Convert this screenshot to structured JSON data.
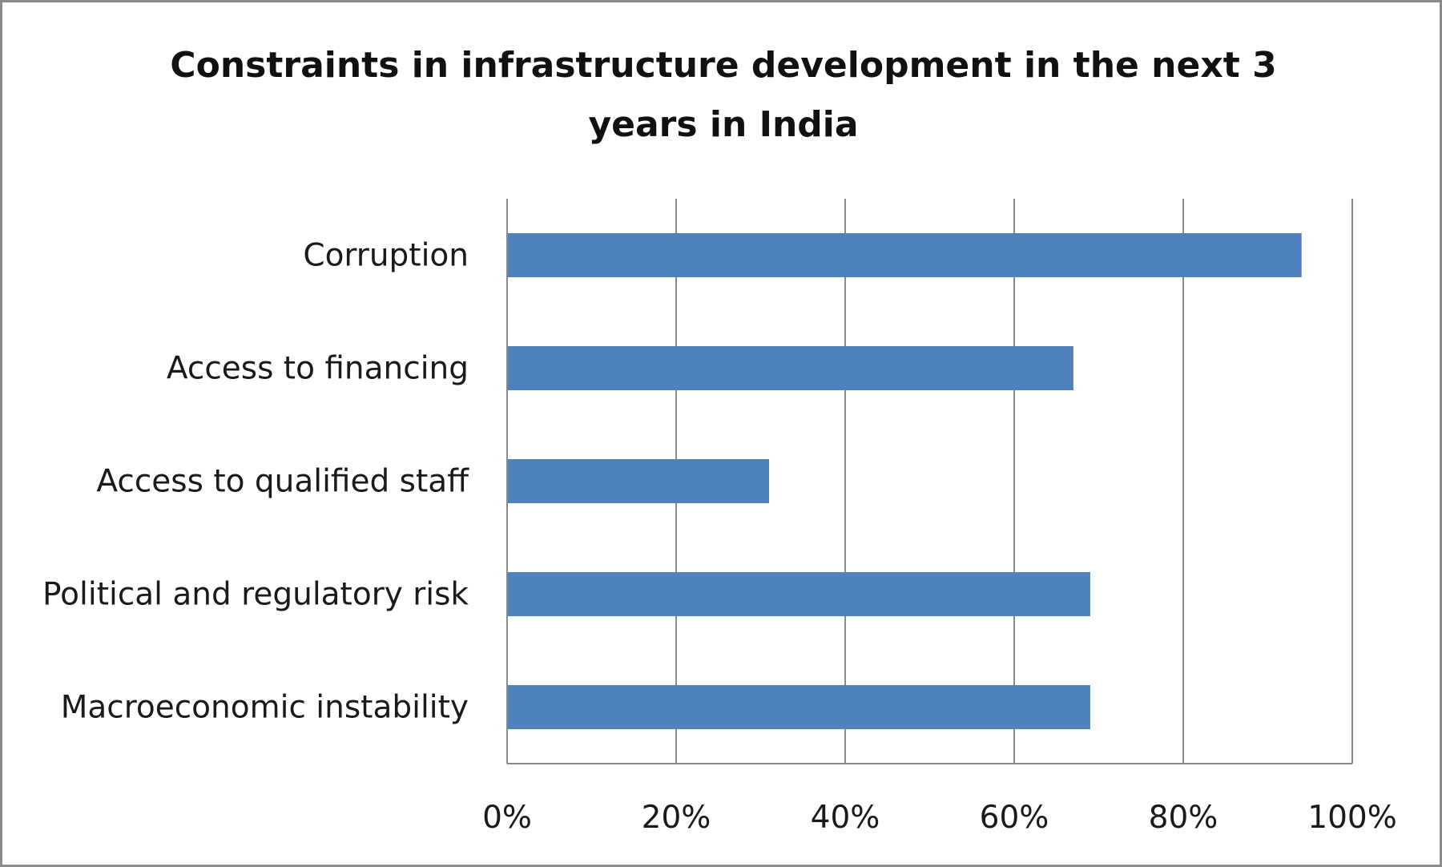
{
  "chart_data": {
    "type": "bar",
    "orientation": "horizontal",
    "title": "Constraints in infrastructure development in the next 3 years in India",
    "categories": [
      "Corruption",
      "Access to financing",
      "Access to qualified staff",
      "Political and regulatory risk",
      "Macroeconomic instability"
    ],
    "values": [
      94,
      67,
      31,
      69,
      69
    ],
    "unit": "%",
    "xlim": [
      0,
      100
    ],
    "xticks": [
      "0%",
      "20%",
      "40%",
      "60%",
      "80%",
      "100%"
    ],
    "grid": "vertical",
    "legend": "none",
    "bar_color": "#4f81bd",
    "xlabel": "",
    "ylabel": ""
  }
}
